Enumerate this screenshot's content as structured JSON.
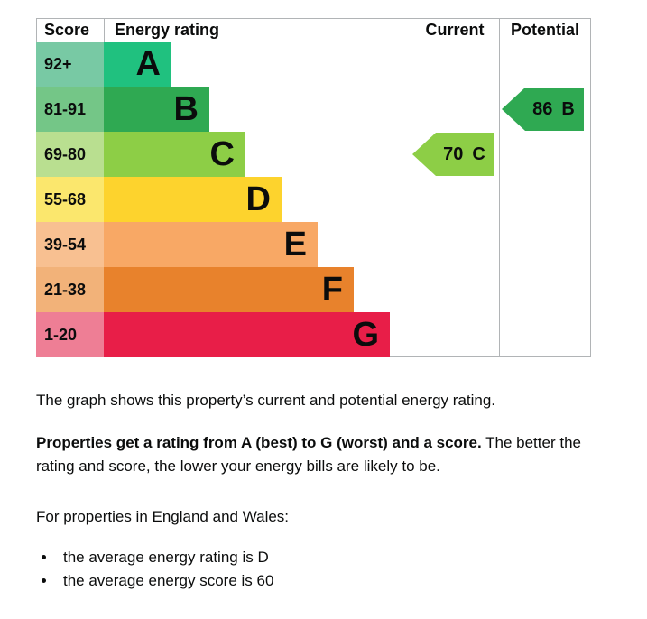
{
  "chart_data": {
    "type": "bar",
    "title": "Energy efficiency rating chart",
    "orientation": "horizontal",
    "legend_position": "none",
    "grid": false,
    "header": {
      "score": "Score",
      "rating": "Energy rating",
      "current": "Current",
      "potential": "Potential"
    },
    "bands": [
      {
        "range": "92+",
        "letter": "A",
        "band_color": "#20c17f",
        "range_color": "#78c9a4"
      },
      {
        "range": "81-91",
        "letter": "B",
        "band_color": "#2fa952",
        "range_color": "#74c687"
      },
      {
        "range": "69-80",
        "letter": "C",
        "band_color": "#8dce46",
        "range_color": "#b9df90"
      },
      {
        "range": "55-68",
        "letter": "D",
        "band_color": "#fdd32d",
        "range_color": "#fbe76d"
      },
      {
        "range": "39-54",
        "letter": "E",
        "band_color": "#f8a865",
        "range_color": "#f8c091"
      },
      {
        "range": "21-38",
        "letter": "F",
        "band_color": "#e8822c",
        "range_color": "#f2b279"
      },
      {
        "range": "1-20",
        "letter": "G",
        "band_color": "#e81e48",
        "range_color": "#ee7e95"
      }
    ],
    "current": {
      "value": "70",
      "letter": "C",
      "color": "#8dce46"
    },
    "potential": {
      "value": "86",
      "letter": "B",
      "color": "#2fa952"
    },
    "colors": {
      "border": "#b1b4b6",
      "text": "#0b0c0c"
    }
  },
  "text": {
    "intro": "The graph shows this property’s current and potential energy rating.",
    "rating_bold": "Properties get a rating from A (best) to G (worst) and a score.",
    "rating_rest": " The better the rating and score, the lower your energy bills are likely to be.",
    "region_heading": "For properties in England and Wales:",
    "bullets": [
      "the average energy rating is D",
      "the average energy score is 60"
    ]
  }
}
